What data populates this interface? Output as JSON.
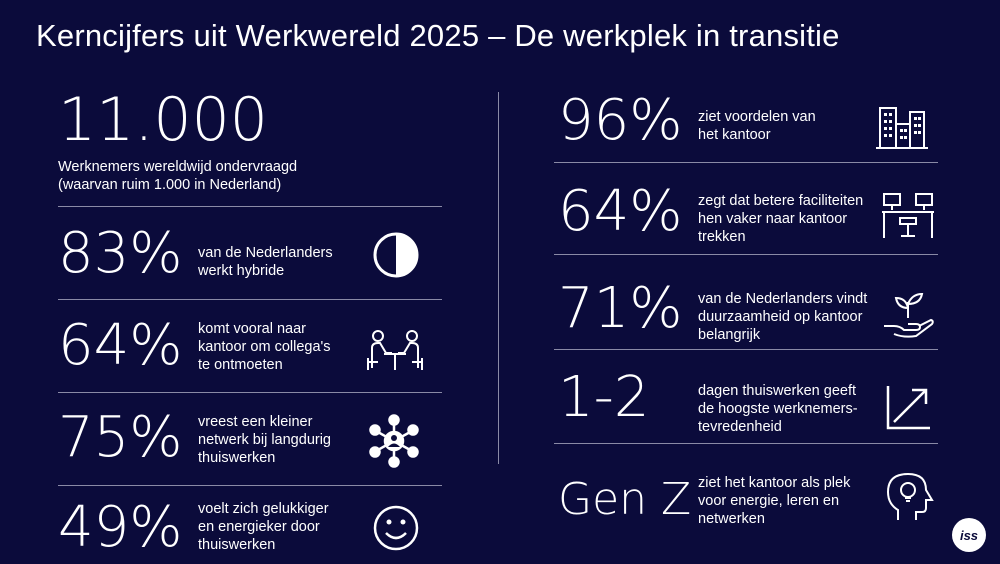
{
  "title": "Kerncijfers uit Werkwereld 2025 – De werkplek in transitie",
  "left": {
    "hero": {
      "value": "11.000",
      "text": "Werknemers wereldwijd ondervraagd\n(waarvan ruim 1.000 in Nederland)"
    },
    "items": [
      {
        "value": "83%",
        "text": "van de Nederlanders\nwerkt hybride",
        "icon": "half-circle-icon"
      },
      {
        "value": "64%",
        "text": "komt vooral naar\nkantoor om collega's\nte ontmoeten",
        "icon": "meeting-icon"
      },
      {
        "value": "75%",
        "text": "vreest een kleiner\nnetwerk bij langdurig\nthuiswerken",
        "icon": "network-icon"
      },
      {
        "value": "49%",
        "text": "voelt zich gelukkiger\nen energieker door\nthuiswerken",
        "icon": "smiley-icon"
      }
    ]
  },
  "right": {
    "items": [
      {
        "value": "96%",
        "text": "ziet voordelen van\nhet kantoor",
        "icon": "buildings-icon"
      },
      {
        "value": "64%",
        "text": "zegt dat betere faciliteiten\nhen vaker naar kantoor\ntrekken",
        "icon": "workstation-icon"
      },
      {
        "value": "71%",
        "text": "van de Nederlanders vindt\nduurzaamheid op kantoor\nbelangrijk",
        "icon": "plant-hand-icon"
      },
      {
        "value": "1-2",
        "text": "dagen thuiswerken geeft\nde hoogste werknemers-\ntevredenheid",
        "icon": "trend-arrow-icon"
      },
      {
        "value": "Gen Z",
        "text": "ziet het kantoor als plek\nvoor energie, leren en\nnetwerken",
        "icon": "head-bulb-icon"
      }
    ]
  },
  "logo": "iss"
}
